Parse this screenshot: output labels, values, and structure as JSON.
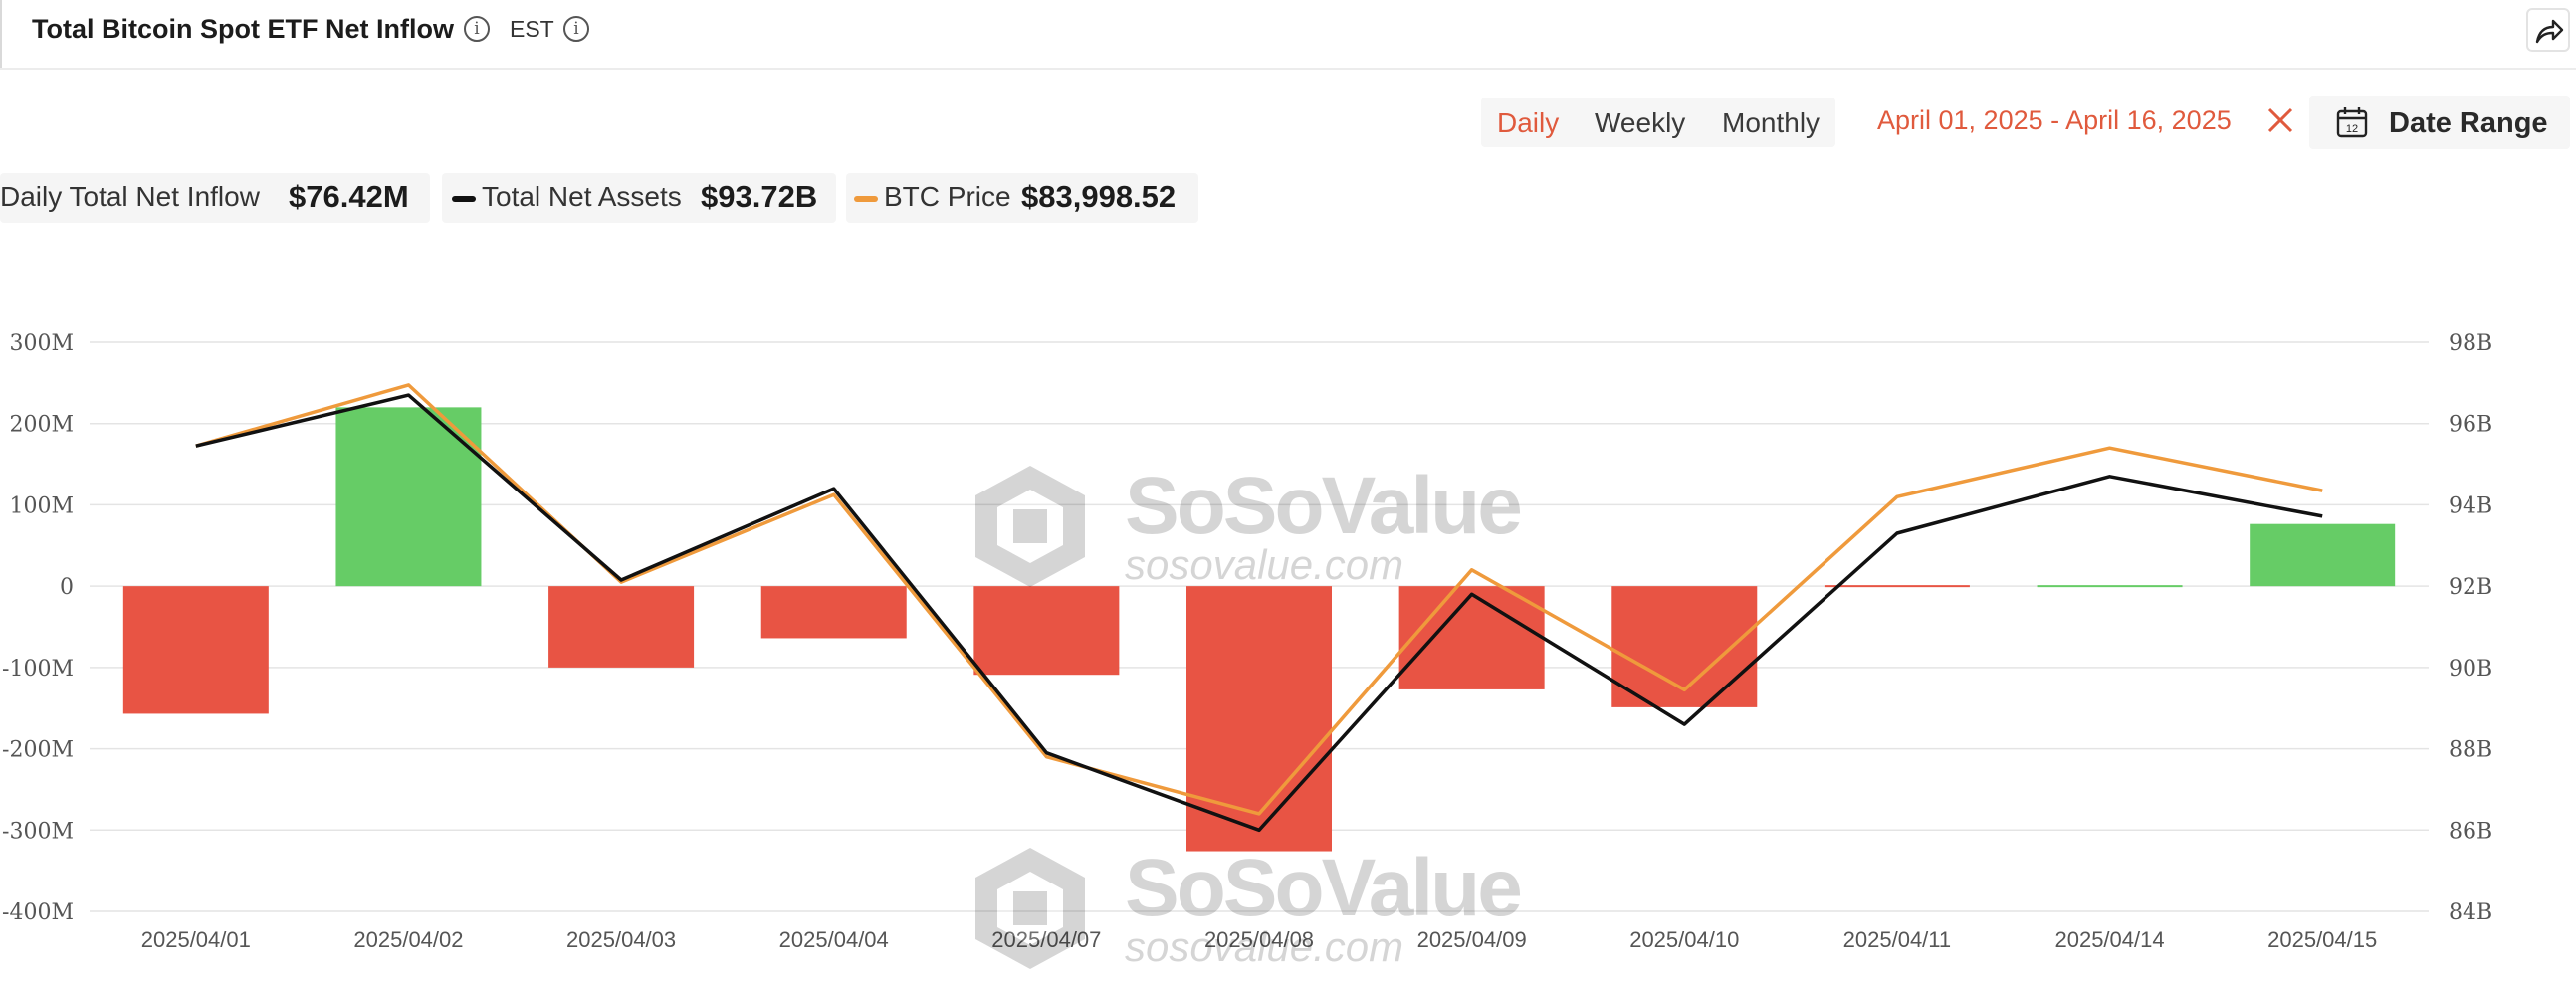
{
  "header": {
    "title": "Total Bitcoin Spot ETF Net Inflow",
    "timezone": "EST"
  },
  "controls": {
    "periods": [
      "Daily",
      "Weekly",
      "Monthly"
    ],
    "active_period": "Daily",
    "date_range_text": "April 01, 2025 - April 16, 2025",
    "date_range_label": "Date Range",
    "calendar_day": "12"
  },
  "legend": {
    "inflow_label": "Daily Total Net Inflow",
    "inflow_value": "$76.42M",
    "assets_label": "Total Net Assets",
    "assets_value": "$93.72B",
    "price_label": "BTC Price",
    "price_value": "$83,998.52"
  },
  "watermark": {
    "brand": "SoSoValue",
    "url": "sosovalue.com"
  },
  "colors": {
    "accent": "#e05a3d",
    "positive_bar": "#66cc66",
    "negative_bar": "#e85444",
    "assets_line": "#111111",
    "price_line": "#ef9a3c"
  },
  "chart_data": {
    "type": "bar",
    "categories": [
      "2025/04/01",
      "2025/04/02",
      "2025/04/03",
      "2025/04/04",
      "2025/04/07",
      "2025/04/08",
      "2025/04/09",
      "2025/04/10",
      "2025/04/11",
      "2025/04/14",
      "2025/04/15"
    ],
    "series": [
      {
        "name": "Daily Total Net Inflow",
        "type": "bar",
        "axis": "left",
        "unit": "M",
        "values": [
          -157,
          220,
          -100,
          -64,
          -109,
          -326,
          -127,
          -149,
          -1,
          1,
          76.42
        ]
      },
      {
        "name": "Total Net Assets",
        "type": "line",
        "axis": "right",
        "unit": "B",
        "values": [
          95.45,
          96.7,
          92.15,
          94.4,
          87.9,
          86.0,
          91.8,
          88.6,
          93.3,
          94.7,
          93.72
        ]
      },
      {
        "name": "BTC Price",
        "type": "line",
        "axis": "right",
        "values": [
          95.45,
          96.95,
          92.1,
          94.25,
          87.8,
          86.4,
          92.4,
          89.45,
          94.2,
          95.4,
          94.35
        ]
      }
    ],
    "y_left": {
      "ticks": [
        "300M",
        "200M",
        "100M",
        "0",
        "-100M",
        "-200M",
        "-300M",
        "-400M"
      ],
      "range": [
        -400,
        300
      ]
    },
    "y_right": {
      "ticks": [
        "98B",
        "96B",
        "94B",
        "92B",
        "90B",
        "88B",
        "86B",
        "84B"
      ],
      "range": [
        84,
        98
      ]
    },
    "grid": true,
    "legend_position": "top-left"
  }
}
